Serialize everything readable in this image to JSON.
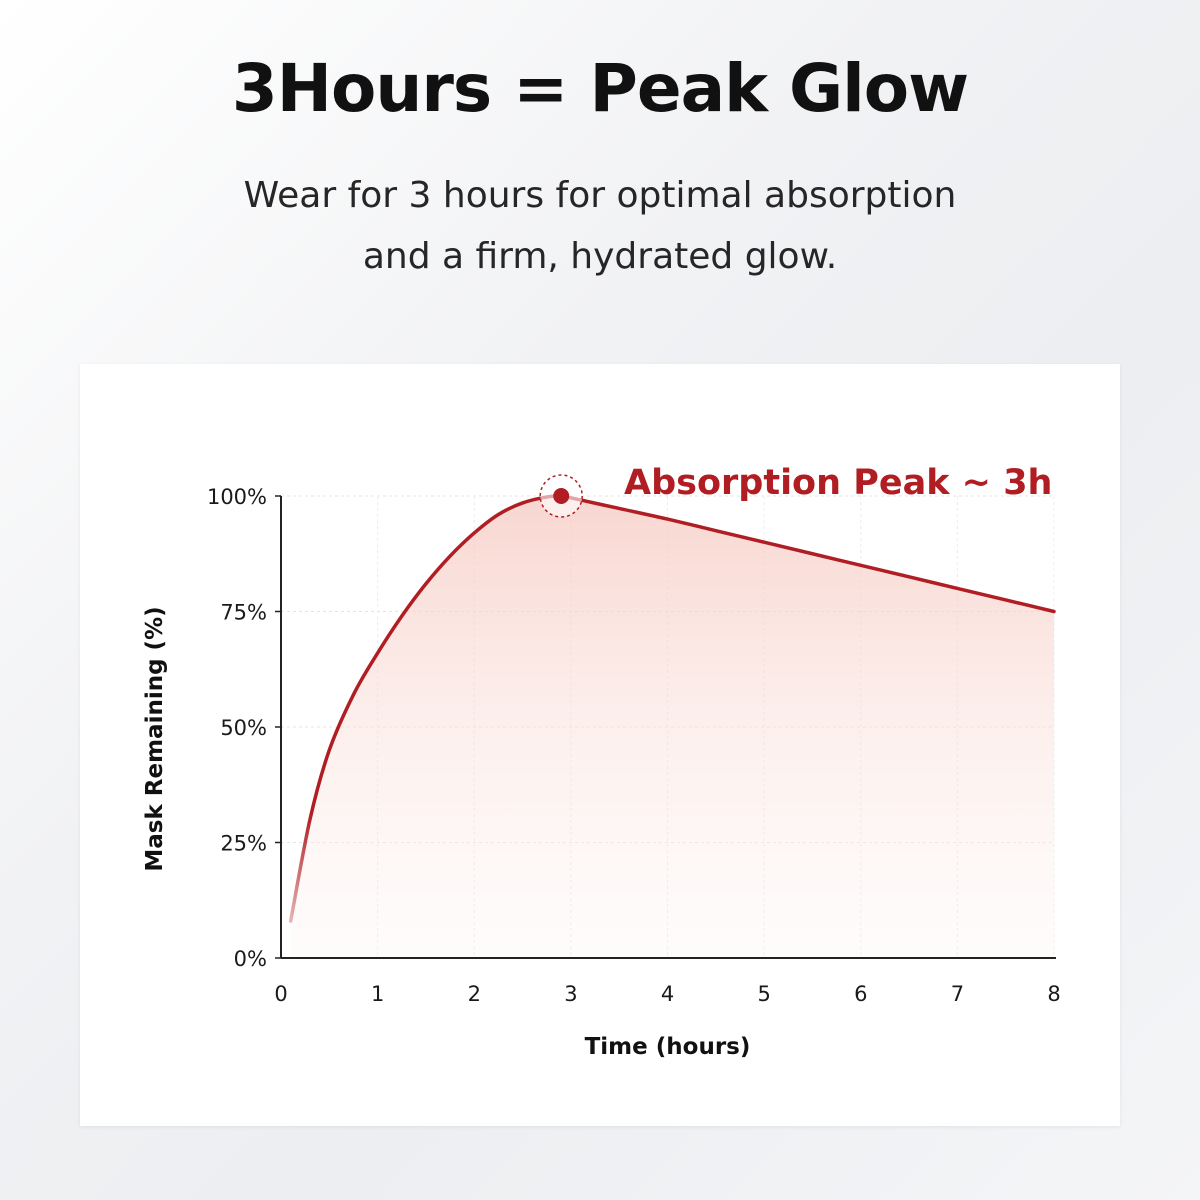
{
  "headline": "3Hours = Peak Glow",
  "subtitle_line1": "Wear for 3 hours for optimal absorption",
  "subtitle_line2": "and a firm, hydrated glow.",
  "colors": {
    "accent": "#b01e23",
    "text": "#111111",
    "fill_start": "#f6c8c0"
  },
  "chart_data": {
    "type": "line",
    "xlabel": "Time (hours)",
    "ylabel": "Mask Remaining (%)",
    "xlim": [
      0,
      8
    ],
    "ylim": [
      0,
      100
    ],
    "x_ticks": [
      0,
      1,
      2,
      3,
      4,
      5,
      6,
      7,
      8
    ],
    "y_ticks": [
      0,
      25,
      50,
      75,
      100
    ],
    "y_tick_labels": [
      "0%",
      "25%",
      "50%",
      "75%",
      "100%"
    ],
    "grid": true,
    "series": [
      {
        "x": [
          0.1,
          0.3,
          0.5,
          0.75,
          1.0,
          1.25,
          1.5,
          1.75,
          2.0,
          2.25,
          2.5,
          2.75,
          2.9,
          3.0,
          3.5,
          4.0,
          4.5,
          5.0,
          5.5,
          6.0,
          6.5,
          7.0,
          7.5,
          8.0
        ],
        "y": [
          8,
          30,
          45,
          57,
          66,
          74,
          81,
          87,
          92,
          96,
          98.5,
          99.8,
          100,
          99.6,
          97.3,
          95,
          92.5,
          90,
          87.5,
          85,
          82.5,
          80,
          77.5,
          75
        ]
      }
    ],
    "annotations": [
      {
        "text": "Absorption Peak ~ 3h",
        "x": 2.9,
        "y": 100
      }
    ]
  }
}
